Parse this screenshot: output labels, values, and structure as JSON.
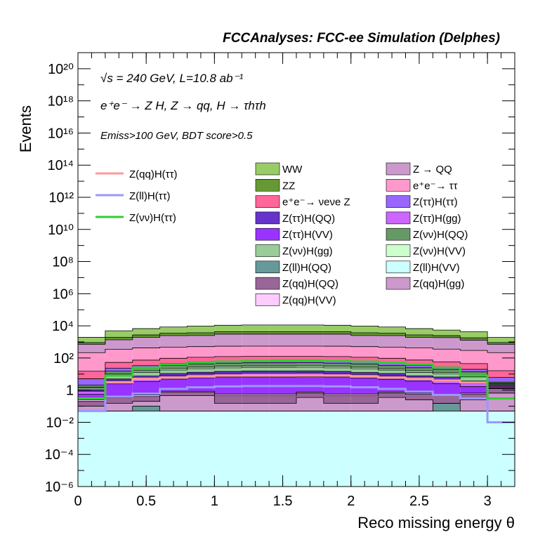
{
  "header": {
    "title": "FCCAnalyses: FCC-ee Simulation (Delphes)"
  },
  "annotations": {
    "sqrt_s_line": "√s = 240 GeV, L=10.8 ab⁻¹",
    "process_line": "e⁺e⁻ → Z H, Z → qq, H → τhτh",
    "selection_line": "Emiss>100 GeV, BDT score>0.5"
  },
  "chart_data": {
    "type": "stacked-histogram",
    "xlabel": "Reco missing energy θ",
    "ylabel": "Events",
    "xlim": [
      0,
      3.2
    ],
    "ylim": [
      1e-06,
      1e+21
    ],
    "yscale": "log",
    "bin_edges": [
      0,
      0.2,
      0.4,
      0.6,
      0.8,
      1.0,
      1.2,
      1.4,
      1.6,
      1.8,
      2.0,
      2.2,
      2.4,
      2.6,
      2.8,
      3.0,
      3.2
    ],
    "x_ticks": [
      "0",
      "0.5",
      "1",
      "1.5",
      "2",
      "2.5",
      "3"
    ],
    "x_tick_values": [
      0,
      0.5,
      1,
      1.5,
      2,
      2.5,
      3
    ],
    "y_ticks": [
      "10⁻⁶",
      "10⁻⁴",
      "10⁻²",
      "1",
      "10²",
      "10⁴",
      "10⁶",
      "10⁸",
      "10¹⁰",
      "10¹²",
      "10¹⁴",
      "10¹⁶",
      "10¹⁸",
      "10²⁰"
    ],
    "y_tick_exponents": [
      -6,
      -4,
      -2,
      0,
      2,
      4,
      6,
      8,
      10,
      12,
      14,
      16,
      18,
      20
    ],
    "stack_bottom_to_top": [
      {
        "name": "Z(ll)H(VV)",
        "color": "#ccffff",
        "values": [
          0.05,
          0.05,
          0.05,
          0.05,
          0.05,
          0.05,
          0.05,
          0.05,
          0.05,
          0.05,
          0.05,
          0.05,
          0.05,
          0.05,
          0.05,
          0.05
        ]
      },
      {
        "name": "Z(ll)H(QQ)",
        "color": "#669999",
        "values": [
          0.0,
          0.0,
          0.05,
          0.0,
          0.0,
          0.0,
          0.0,
          0.0,
          0.0,
          0.0,
          0.0,
          0.0,
          0.0,
          0.1,
          0.0,
          0.0
        ]
      },
      {
        "name": "Z(qq)H(gg)",
        "color": "#cc99cc",
        "values": [
          0.05,
          0.1,
          0.1,
          0.4,
          0.4,
          0.1,
          0.1,
          0.1,
          0.3,
          0.1,
          0.1,
          0.3,
          0.2,
          0.0,
          0.2,
          0.6
        ]
      },
      {
        "name": "Z(qq)H(QQ)",
        "color": "#996699",
        "values": [
          0.1,
          0.2,
          0.2,
          0.3,
          0.3,
          0.3,
          0.3,
          0.3,
          0.3,
          0.3,
          0.3,
          0.3,
          0.3,
          0.3,
          0.3,
          0.6
        ]
      },
      {
        "name": "Z(qq)H(VV)",
        "color": "#ffccff",
        "values": [
          0.05,
          0.1,
          0.1,
          0.1,
          0.1,
          0.1,
          0.1,
          0.1,
          0.1,
          0.1,
          0.1,
          0.1,
          0.1,
          0.1,
          0.1,
          0.1
        ]
      },
      {
        "name": "Z(ττ)H(VV)",
        "color": "#9933ff",
        "values": [
          0.3,
          2,
          3,
          4,
          5,
          6,
          6,
          6,
          6,
          6,
          5,
          4,
          3,
          2,
          1,
          0.3
        ]
      },
      {
        "name": "Z(ττ)H(gg)",
        "color": "#cc66ff",
        "values": [
          0.3,
          1.5,
          2,
          3,
          4,
          4,
          5,
          5,
          5,
          4,
          4,
          3,
          2,
          2,
          1,
          0.3
        ]
      },
      {
        "name": "Z(ττ)H(QQ)",
        "color": "#6633cc",
        "values": [
          0.2,
          1,
          2,
          3,
          3,
          4,
          4,
          4,
          4,
          4,
          3,
          3,
          2,
          2,
          1,
          0.2
        ]
      },
      {
        "name": "Z(νν)H(gg)",
        "color": "#99cc99",
        "values": [
          0.3,
          3,
          5,
          7,
          9,
          10,
          11,
          11,
          11,
          10,
          9,
          7,
          5,
          4,
          3,
          0.3
        ]
      },
      {
        "name": "Z(νν)H(VV)",
        "color": "#ccffcc",
        "values": [
          0.2,
          2,
          3,
          4,
          5,
          6,
          6,
          6,
          6,
          6,
          5,
          4,
          3,
          2,
          2,
          0.2
        ]
      },
      {
        "name": "Z(νν)H(QQ)",
        "color": "#669966",
        "values": [
          0.5,
          5,
          8,
          12,
          15,
          17,
          18,
          18,
          18,
          17,
          15,
          12,
          9,
          7,
          5,
          0.5
        ]
      },
      {
        "name": "Z(ττ)H(ττ)",
        "color": "#9966ff",
        "values": [
          3,
          8,
          10,
          12,
          14,
          15,
          15,
          15,
          15,
          15,
          14,
          12,
          10,
          8,
          6,
          3
        ]
      },
      {
        "name": "e⁺e⁻→ νeνe Z",
        "color": "#ff6699",
        "values": [
          10,
          30,
          40,
          50,
          55,
          60,
          60,
          60,
          60,
          60,
          55,
          50,
          40,
          30,
          25,
          10
        ]
      },
      {
        "name": "e⁺e⁻→ ττ",
        "color": "#ff99cc",
        "values": [
          200,
          300,
          350,
          380,
          400,
          420,
          420,
          420,
          420,
          420,
          400,
          380,
          350,
          300,
          250,
          200
        ]
      },
      {
        "name": "Z → QQ",
        "color": "#cc99cc",
        "values": [
          500,
          1000,
          1500,
          2000,
          2000,
          2500,
          2500,
          2500,
          2500,
          2500,
          2000,
          2000,
          1500,
          1500,
          1000,
          500
        ]
      },
      {
        "name": "ZZ",
        "color": "#669933",
        "values": [
          200,
          600,
          800,
          1000,
          1200,
          1300,
          1300,
          1300,
          1300,
          1300,
          1200,
          1000,
          800,
          600,
          500,
          200
        ]
      },
      {
        "name": "WW",
        "color": "#99cc66",
        "values": [
          1000,
          3000,
          4000,
          5000,
          6000,
          6500,
          7000,
          7000,
          7000,
          6500,
          6000,
          5000,
          4000,
          3000,
          2500,
          1000
        ]
      }
    ],
    "signal_lines": [
      {
        "name": "Z(qq)H(ττ)",
        "color": "#ff9999",
        "values": [
          0.3,
          3,
          5,
          6,
          7,
          8,
          8,
          8,
          8,
          8,
          7,
          6,
          5,
          4,
          3,
          0.3
        ]
      },
      {
        "name": "Z(ll)H(ττ)",
        "color": "#9999ff",
        "values": [
          0.05,
          0.4,
          0.6,
          1.2,
          1.5,
          1.7,
          1.8,
          1.8,
          1.8,
          1.7,
          1.5,
          1.2,
          0.8,
          0.5,
          0.3,
          0.01
        ]
      },
      {
        "name": "Z(νν)H(ττ)",
        "color": "#33cc33",
        "values": [
          0.3,
          8,
          25,
          40,
          50,
          60,
          65,
          70,
          70,
          65,
          60,
          50,
          40,
          25,
          8,
          0.3
        ]
      }
    ],
    "legend_columns": [
      [
        "WW",
        "ZZ",
        "e⁺e⁻→ νeνe Z",
        "Z(ττ)H(QQ)",
        "Z(ττ)H(VV)",
        "Z(νν)H(gg)",
        "Z(ll)H(QQ)",
        "Z(qq)H(QQ)",
        "Z(qq)H(VV)"
      ],
      [
        "Z → QQ",
        "e⁺e⁻→ ττ",
        "Z(ττ)H(ττ)",
        "Z(ττ)H(gg)",
        "Z(νν)H(QQ)",
        "Z(νν)H(VV)",
        "Z(ll)H(VV)",
        "Z(qq)H(gg)"
      ]
    ]
  }
}
